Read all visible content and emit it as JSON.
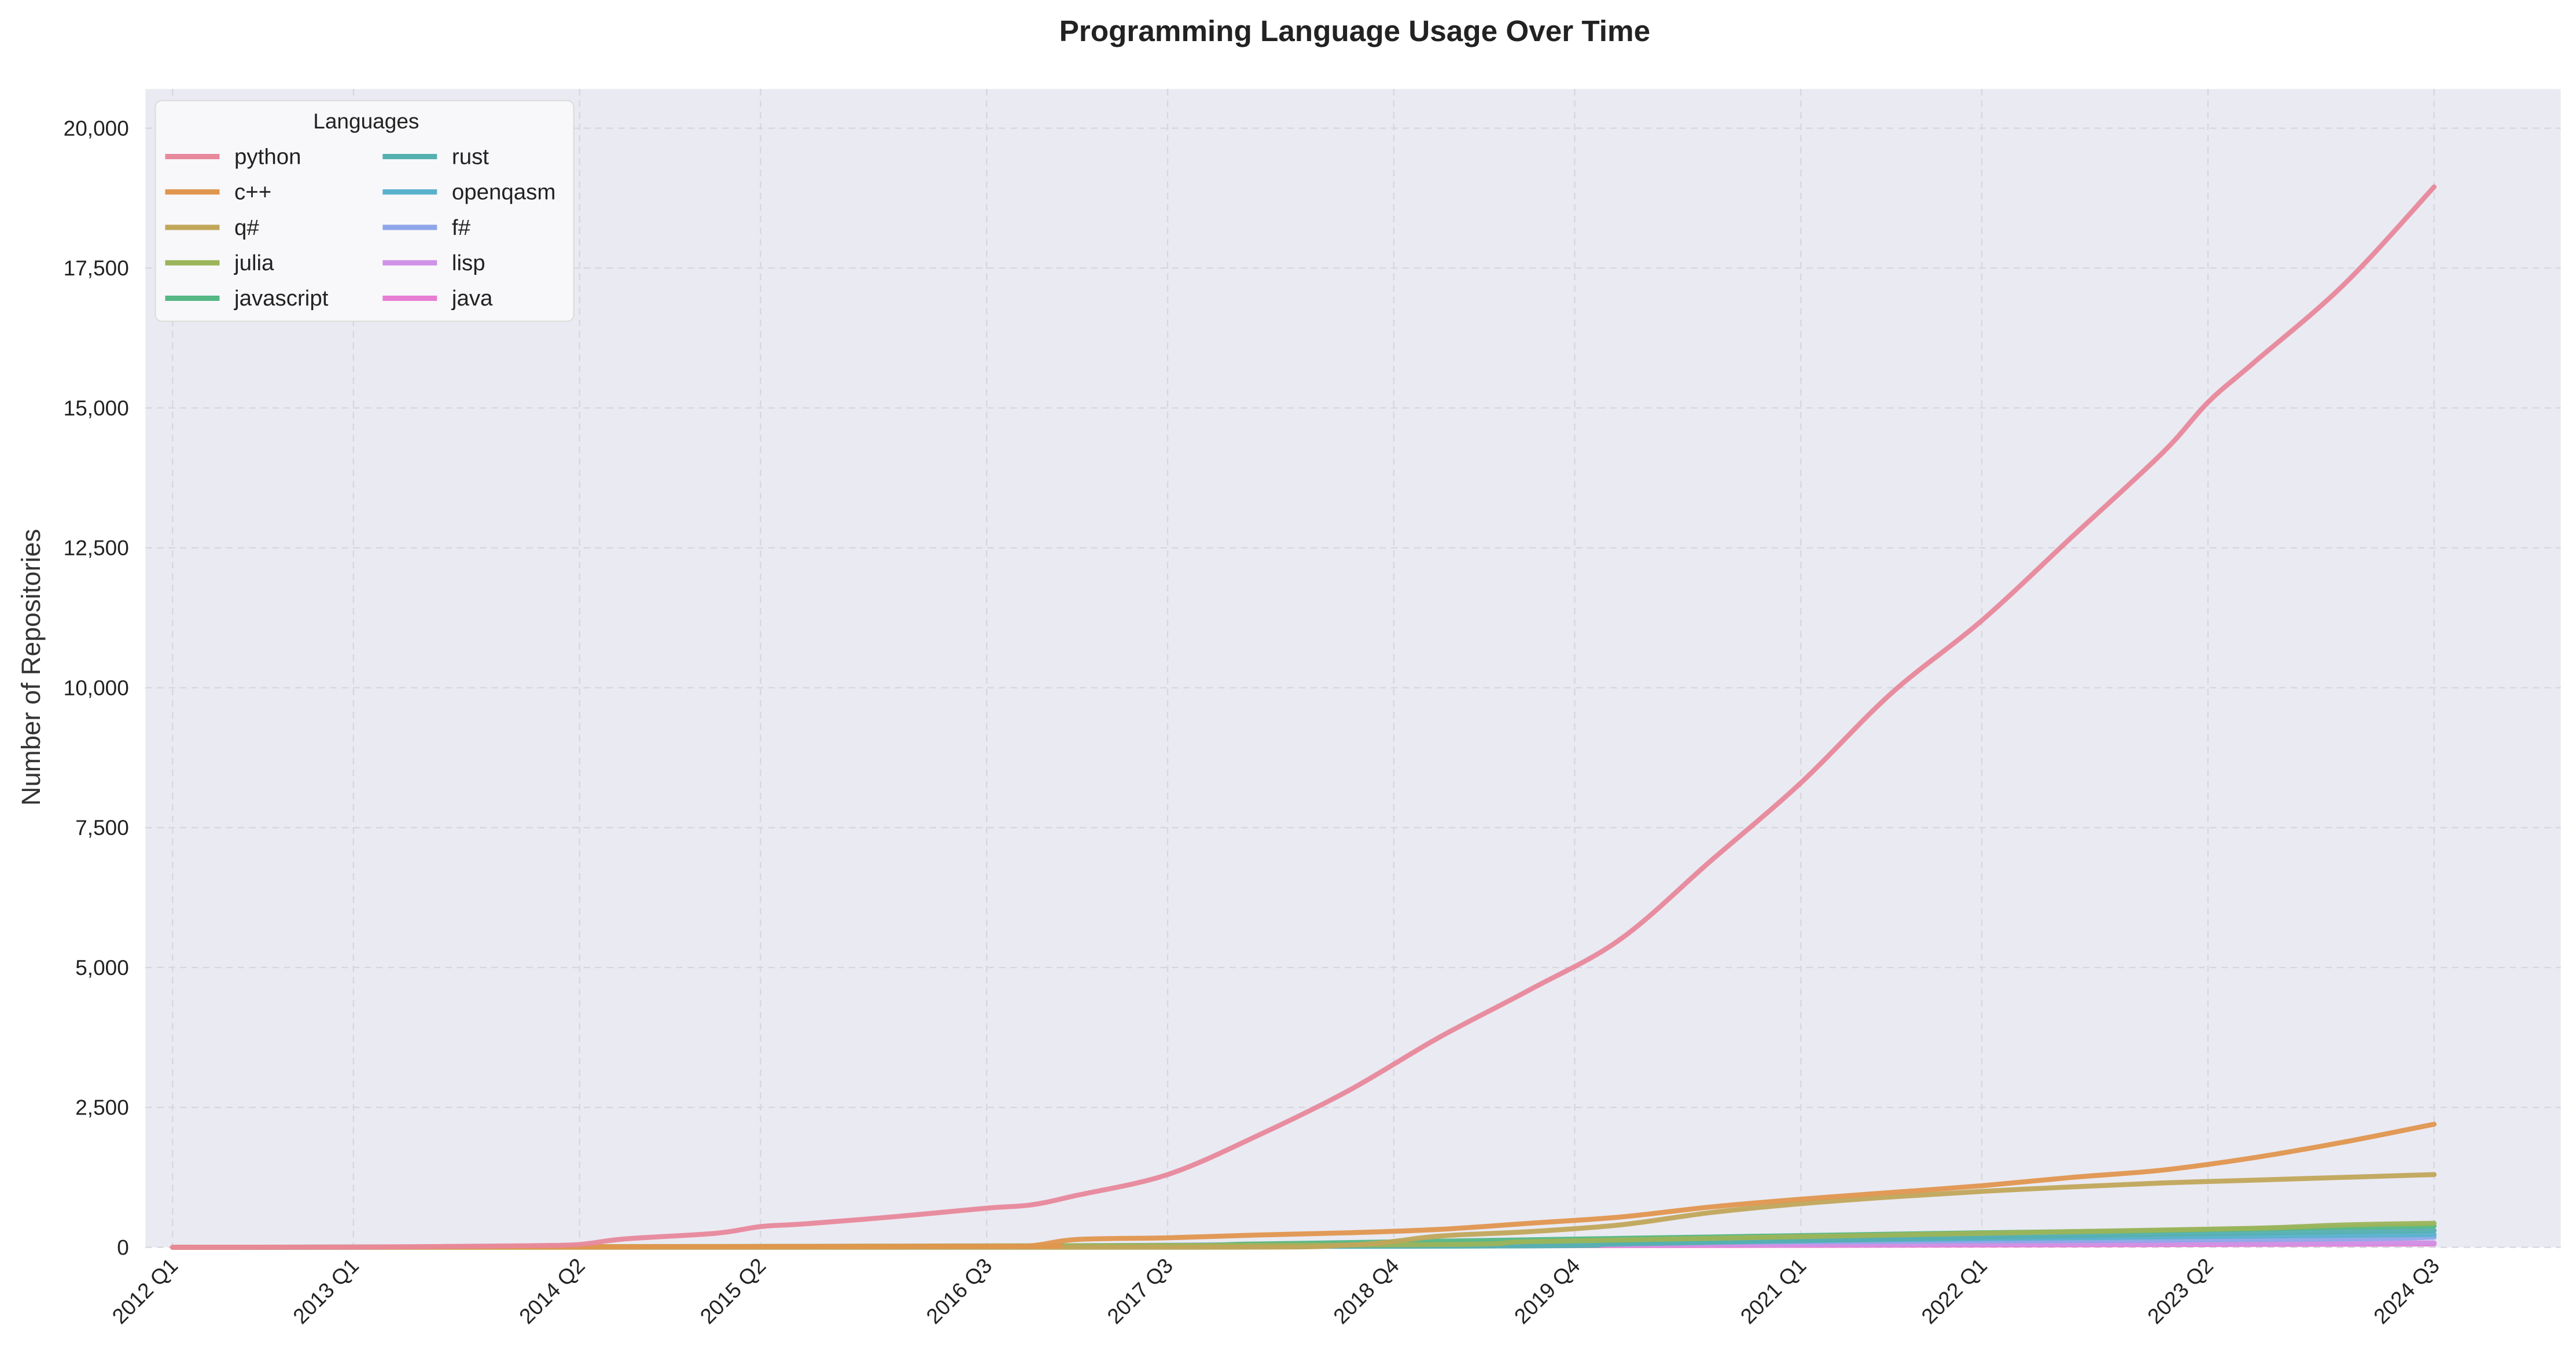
{
  "chart_data": {
    "type": "line",
    "title": "Programming Language Usage Over Time",
    "ylabel": "Number of Repositories",
    "xlabel": "",
    "ylim": [
      0,
      20700
    ],
    "yticks": [
      0,
      2500,
      5000,
      7500,
      10000,
      12500,
      15000,
      17500,
      20000
    ],
    "ytick_labels": [
      "0",
      "2,500",
      "5,000",
      "7,500",
      "10,000",
      "12,500",
      "15,000",
      "17,500",
      "20,000"
    ],
    "xlim": [
      2011.85,
      2025.2
    ],
    "xtick_positions": [
      2012.0,
      2013.0,
      2014.25,
      2015.25,
      2016.5,
      2017.5,
      2018.75,
      2019.75,
      2021.0,
      2022.0,
      2023.25,
      2024.5
    ],
    "xtick_labels": [
      "2012 Q1",
      "2013 Q1",
      "2014 Q2",
      "2015 Q2",
      "2016 Q3",
      "2017 Q3",
      "2018 Q4",
      "2019 Q4",
      "2021 Q1",
      "2022 Q1",
      "2023 Q2",
      "2024 Q3"
    ],
    "grid": true,
    "legend": {
      "title": "Languages",
      "placement": "top-left",
      "columns": 2
    },
    "series": [
      {
        "name": "python",
        "color": "#e8889b",
        "x": [
          2012.0,
          2013.0,
          2013.5,
          2014.0,
          2014.25,
          2014.5,
          2015.0,
          2015.25,
          2015.5,
          2016.0,
          2016.5,
          2016.75,
          2017.0,
          2017.5,
          2018.0,
          2018.5,
          2019.0,
          2019.5,
          2020.0,
          2020.5,
          2021.0,
          2021.5,
          2022.0,
          2022.5,
          2023.0,
          2023.25,
          2023.5,
          2024.0,
          2024.5
        ],
        "y": [
          0,
          5,
          15,
          30,
          50,
          150,
          250,
          370,
          420,
          550,
          700,
          760,
          930,
          1300,
          2000,
          2800,
          3750,
          4600,
          5500,
          6900,
          8300,
          9900,
          11200,
          12700,
          14200,
          15100,
          15800,
          17200,
          18950
        ]
      },
      {
        "name": "c++",
        "color": "#e0964e",
        "x": [
          2012.0,
          2016.5,
          2016.75,
          2017.0,
          2017.5,
          2018.0,
          2018.5,
          2019.0,
          2019.5,
          2020.0,
          2020.5,
          2021.0,
          2021.5,
          2022.0,
          2022.5,
          2023.0,
          2023.5,
          2024.0,
          2024.5
        ],
        "y": [
          0,
          20,
          30,
          140,
          170,
          220,
          260,
          320,
          430,
          540,
          720,
          860,
          980,
          1100,
          1250,
          1380,
          1600,
          1880,
          2200
        ]
      },
      {
        "name": "q#",
        "color": "#c1a65a",
        "x": [
          2012.0,
          2017.5,
          2018.5,
          2019.0,
          2019.5,
          2020.0,
          2020.5,
          2021.0,
          2021.5,
          2022.0,
          2022.5,
          2023.0,
          2023.5,
          2024.0,
          2024.5
        ],
        "y": [
          0,
          0,
          40,
          200,
          280,
          400,
          620,
          780,
          900,
          1000,
          1080,
          1150,
          1200,
          1250,
          1300
        ]
      },
      {
        "name": "julia",
        "color": "#9cb45a",
        "x": [
          2012.0,
          2018.5,
          2019.5,
          2020.5,
          2021.5,
          2022.5,
          2023.5,
          2024.0,
          2024.5
        ],
        "y": [
          0,
          40,
          100,
          160,
          220,
          280,
          340,
          400,
          430
        ]
      },
      {
        "name": "javascript",
        "color": "#55b784",
        "x": [
          2012.0,
          2017.0,
          2018.0,
          2019.0,
          2020.0,
          2021.0,
          2022.0,
          2023.0,
          2024.0,
          2024.5
        ],
        "y": [
          0,
          20,
          60,
          110,
          160,
          210,
          260,
          300,
          360,
          380
        ]
      },
      {
        "name": "rust",
        "color": "#55b0b0",
        "x": [
          2012.0,
          2019.0,
          2020.0,
          2021.0,
          2022.0,
          2023.0,
          2024.0,
          2024.5
        ],
        "y": [
          0,
          20,
          60,
          120,
          180,
          230,
          280,
          300
        ]
      },
      {
        "name": "openqasm",
        "color": "#5ab1cc",
        "x": [
          2012.0,
          2018.5,
          2019.5,
          2020.5,
          2021.5,
          2022.5,
          2023.5,
          2024.5
        ],
        "y": [
          0,
          20,
          60,
          100,
          140,
          170,
          200,
          230
        ]
      },
      {
        "name": "f#",
        "color": "#8ea6e8",
        "x": [
          2012.0,
          2016.5,
          2018.0,
          2019.5,
          2021.0,
          2022.5,
          2024.0,
          2024.5
        ],
        "y": [
          0,
          20,
          50,
          80,
          100,
          120,
          150,
          180
        ]
      },
      {
        "name": "lisp",
        "color": "#cf92e6",
        "x": [
          2012.0,
          2016.0,
          2018.0,
          2020.0,
          2022.0,
          2024.5
        ],
        "y": [
          0,
          10,
          30,
          45,
          60,
          80
        ]
      },
      {
        "name": "java",
        "color": "#e97cd3",
        "x": [
          2012.0,
          2016.0,
          2018.0,
          2020.0,
          2022.0,
          2024.5
        ],
        "y": [
          0,
          10,
          20,
          30,
          40,
          60
        ]
      }
    ]
  }
}
